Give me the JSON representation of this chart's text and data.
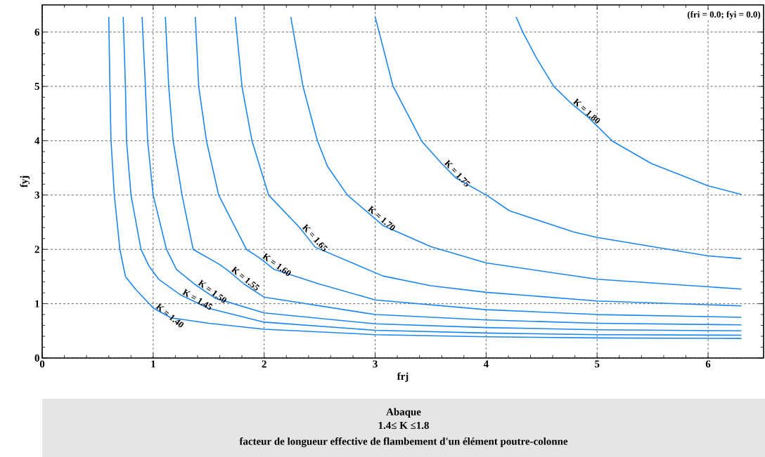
{
  "chart_data": {
    "type": "line",
    "title": "Abaque",
    "subtitle": "1.4≤ K ≤1.8",
    "xlabel": "frj",
    "ylabel": "fyj",
    "annotations": [
      "(fri = 0.0; fyi = 0.0)",
      "facteur de longueur effective de flambement d'un élément poutre-colonne"
    ],
    "xlim": [
      0,
      6.5
    ],
    "ylim": [
      0,
      6.5
    ],
    "xticks": [
      0,
      1,
      2,
      3,
      4,
      5,
      6
    ],
    "yticks": [
      0,
      1,
      2,
      3,
      4,
      5,
      6
    ],
    "grid": true,
    "series": [
      {
        "name": "K = 1.40",
        "color": "#1a86f2",
        "x": [
          0.6,
          0.61,
          0.62,
          0.65,
          0.7,
          0.75,
          0.84,
          1.0,
          1.16,
          1.5,
          2,
          3,
          4,
          5,
          6.3
        ],
        "values": [
          6.28,
          5,
          4,
          3,
          2,
          1.5,
          1.27,
          0.92,
          0.74,
          0.64,
          0.53,
          0.43,
          0.39,
          0.37,
          0.36
        ]
      },
      {
        "name": "K = 1.45",
        "color": "#1a86f2",
        "x": [
          0.73,
          0.75,
          0.76,
          0.8,
          0.89,
          0.96,
          1.05,
          1.24,
          1.49,
          2,
          3,
          4,
          5,
          6.3
        ],
        "values": [
          6.28,
          5,
          4,
          3,
          2,
          1.7,
          1.45,
          1.17,
          0.92,
          0.66,
          0.51,
          0.46,
          0.43,
          0.42
        ]
      },
      {
        "name": "K = 1.50",
        "color": "#1a86f2",
        "x": [
          0.9,
          0.93,
          0.95,
          1.0,
          1.12,
          1.21,
          1.38,
          1.56,
          2,
          3,
          4,
          5,
          6.3
        ],
        "values": [
          6.28,
          5,
          4,
          3,
          2,
          1.63,
          1.35,
          1.1,
          0.83,
          0.63,
          0.56,
          0.52,
          0.5
        ]
      },
      {
        "name": "K = 1.55",
        "color": "#1a86f2",
        "x": [
          1.11,
          1.14,
          1.18,
          1.26,
          1.36,
          1.6,
          1.68,
          1.82,
          2,
          3,
          4,
          5,
          6.3
        ],
        "values": [
          6.28,
          5,
          4,
          3,
          2,
          1.72,
          1.6,
          1.36,
          1.12,
          0.8,
          0.7,
          0.64,
          0.61
        ]
      },
      {
        "name": "K = 1.60",
        "color": "#1a86f2",
        "x": [
          1.38,
          1.41,
          1.48,
          1.59,
          1.84,
          1.96,
          2.09,
          2.5,
          3,
          4,
          5,
          6.3
        ],
        "values": [
          6.28,
          5,
          4,
          3,
          2,
          1.84,
          1.63,
          1.36,
          1.07,
          0.89,
          0.8,
          0.75
        ]
      },
      {
        "name": "K = 1.65",
        "color": "#1a86f2",
        "x": [
          1.74,
          1.8,
          1.89,
          2.04,
          2.32,
          2.46,
          3.07,
          3.5,
          4,
          5,
          6.3
        ],
        "values": [
          6.28,
          5,
          4,
          3,
          2.4,
          2.04,
          1.51,
          1.33,
          1.21,
          1.05,
          0.96
        ]
      },
      {
        "name": "K = 1.70",
        "color": "#1a86f2",
        "x": [
          2.24,
          2.35,
          2.48,
          2.57,
          2.75,
          2.91,
          3.07,
          3.5,
          4,
          5,
          6.3
        ],
        "values": [
          6.28,
          5,
          4,
          3.53,
          3.0,
          2.72,
          2.44,
          2.05,
          1.75,
          1.45,
          1.27
        ]
      },
      {
        "name": "K = 1.75",
        "color": "#1a86f2",
        "x": [
          3.0,
          3.07,
          3.16,
          3.42,
          3.6,
          3.73,
          4.01,
          4.21,
          4.79,
          5,
          6,
          6.3
        ],
        "values": [
          6.28,
          5.73,
          5.01,
          3.99,
          3.58,
          3.31,
          2.99,
          2.71,
          2.32,
          2.22,
          1.88,
          1.83
        ]
      },
      {
        "name": "K = 1.80",
        "color": "#1a86f2",
        "x": [
          4.27,
          4.33,
          4.46,
          4.61,
          4.76,
          4.92,
          5.14,
          5.49,
          6.0,
          6.3
        ],
        "values": [
          6.28,
          6.0,
          5.5,
          5.0,
          4.7,
          4.43,
          3.99,
          3.58,
          3.17,
          3.01
        ]
      }
    ]
  }
}
